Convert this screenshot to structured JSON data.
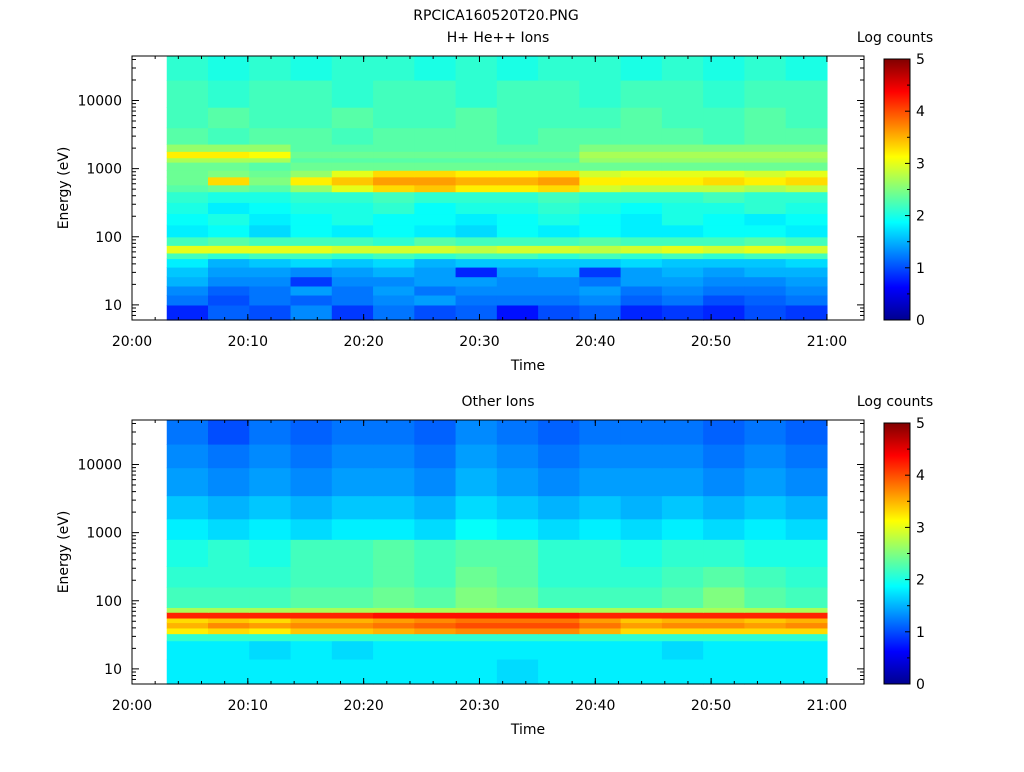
{
  "figure": {
    "title": "RPCICA160520T20.PNG"
  },
  "chart_data": [
    {
      "type": "heatmap",
      "title": "H+ He++ Ions",
      "xlabel": "Time",
      "ylabel": "Energy (eV)",
      "yscale": "log",
      "ylim": [
        6,
        45000
      ],
      "x_ticks": [
        "20:00",
        "20:10",
        "20:20",
        "20:30",
        "20:40",
        "20:50",
        "21:00"
      ],
      "y_ticks": [
        "10",
        "100",
        "1000",
        "10000"
      ],
      "x_start": "20:03",
      "x_end": "21:00",
      "x_bin_count": 16,
      "colorbar": {
        "label": "Log counts",
        "range": [
          0,
          5
        ],
        "ticks": [
          "0",
          "1",
          "2",
          "3",
          "4",
          "5"
        ]
      },
      "bands": [
        {
          "energy": [
            6,
            10
          ],
          "values": [
            0.8,
            1.1,
            1.0,
            1.3,
            0.9,
            1.2,
            1.0,
            1.1,
            0.7,
            1.0,
            1.1,
            0.8,
            0.9,
            0.8,
            1.0,
            0.9
          ]
        },
        {
          "energy": [
            10,
            14
          ],
          "values": [
            1.2,
            1.0,
            1.2,
            1.1,
            1.2,
            1.3,
            1.4,
            1.2,
            1.2,
            1.2,
            1.3,
            1.1,
            1.2,
            1.0,
            1.1,
            1.2
          ]
        },
        {
          "energy": [
            14,
            19
          ],
          "values": [
            1.3,
            1.1,
            1.2,
            1.4,
            1.2,
            1.4,
            1.2,
            1.3,
            1.3,
            1.3,
            1.4,
            1.2,
            1.3,
            1.2,
            1.2,
            1.3
          ]
        },
        {
          "energy": [
            19,
            26
          ],
          "values": [
            1.5,
            1.3,
            1.3,
            0.9,
            1.3,
            1.3,
            1.4,
            1.4,
            1.3,
            1.3,
            1.2,
            1.4,
            1.4,
            1.3,
            1.3,
            1.4
          ]
        },
        {
          "energy": [
            26,
            36
          ],
          "values": [
            1.6,
            1.4,
            1.4,
            1.3,
            1.4,
            1.5,
            1.4,
            0.8,
            1.4,
            1.5,
            0.9,
            1.4,
            1.5,
            1.4,
            1.5,
            1.5
          ]
        },
        {
          "energy": [
            36,
            48
          ],
          "values": [
            1.8,
            1.5,
            1.6,
            1.7,
            1.6,
            1.7,
            1.5,
            1.6,
            1.6,
            1.6,
            1.6,
            1.7,
            1.6,
            1.6,
            1.6,
            1.7
          ]
        },
        {
          "energy": [
            48,
            58
          ],
          "values": [
            2.2,
            2.1,
            2.2,
            2.2,
            2.1,
            2.2,
            2.1,
            2.2,
            2.2,
            2.1,
            2.2,
            2.1,
            2.2,
            2.1,
            2.2,
            2.2
          ]
        },
        {
          "energy": [
            58,
            75
          ],
          "values": [
            3.0,
            3.0,
            3.0,
            3.0,
            2.9,
            2.9,
            2.9,
            2.8,
            2.9,
            2.9,
            2.8,
            2.9,
            3.0,
            2.9,
            3.0,
            2.9
          ]
        },
        {
          "energy": [
            75,
            100
          ],
          "values": [
            2.2,
            2.3,
            2.2,
            2.2,
            2.2,
            2.1,
            2.3,
            2.2,
            2.2,
            2.2,
            2.3,
            2.2,
            2.2,
            2.2,
            2.3,
            2.2
          ]
        },
        {
          "energy": [
            100,
            150
          ],
          "values": [
            1.8,
            1.9,
            1.7,
            1.9,
            1.8,
            1.9,
            1.8,
            1.7,
            1.9,
            1.8,
            1.9,
            1.8,
            1.8,
            1.9,
            1.9,
            1.8
          ]
        },
        {
          "energy": [
            150,
            220
          ],
          "values": [
            1.9,
            2.0,
            1.8,
            1.9,
            2.0,
            1.9,
            1.9,
            1.8,
            1.9,
            2.0,
            1.9,
            1.8,
            2.0,
            1.9,
            1.8,
            1.9
          ]
        },
        {
          "energy": [
            220,
            320
          ],
          "values": [
            2.0,
            1.8,
            1.9,
            2.0,
            2.0,
            2.1,
            1.9,
            2.0,
            2.0,
            2.1,
            2.0,
            1.9,
            2.0,
            2.0,
            2.1,
            2.0
          ]
        },
        {
          "energy": [
            320,
            460
          ],
          "values": [
            2.1,
            2.0,
            2.0,
            2.1,
            2.1,
            2.2,
            2.1,
            2.1,
            2.1,
            2.2,
            2.1,
            2.1,
            2.1,
            2.2,
            2.1,
            2.1
          ]
        },
        {
          "energy": [
            460,
            580
          ],
          "values": [
            2.3,
            2.4,
            2.3,
            2.6,
            3.0,
            3.3,
            3.4,
            3.2,
            3.2,
            3.3,
            2.9,
            2.8,
            2.8,
            2.8,
            2.7,
            2.8
          ]
        },
        {
          "energy": [
            580,
            760
          ],
          "values": [
            2.4,
            3.3,
            2.5,
            3.2,
            3.4,
            3.6,
            3.6,
            3.5,
            3.5,
            3.6,
            3.2,
            3.2,
            3.2,
            3.3,
            3.2,
            3.3
          ]
        },
        {
          "energy": [
            760,
            950
          ],
          "values": [
            2.4,
            2.5,
            2.4,
            2.6,
            3.0,
            3.3,
            3.3,
            3.2,
            3.2,
            3.3,
            2.9,
            3.0,
            3.0,
            3.0,
            2.9,
            3.0
          ]
        },
        {
          "energy": [
            950,
            1250
          ],
          "values": [
            2.4,
            2.4,
            2.3,
            2.4,
            2.4,
            2.4,
            2.4,
            2.4,
            2.4,
            2.4,
            2.4,
            2.4,
            2.4,
            2.4,
            2.4,
            2.4
          ]
        },
        {
          "energy": [
            1250,
            1450
          ],
          "values": [
            2.7,
            2.7,
            2.7,
            2.3,
            2.3,
            2.3,
            2.3,
            2.3,
            2.3,
            2.3,
            2.6,
            2.6,
            2.6,
            2.6,
            2.6,
            2.6
          ]
        },
        {
          "energy": [
            1450,
            1800
          ],
          "values": [
            3.2,
            3.2,
            3.1,
            2.4,
            2.4,
            2.4,
            2.4,
            2.4,
            2.4,
            2.4,
            2.7,
            2.7,
            2.7,
            2.7,
            2.7,
            2.7
          ]
        },
        {
          "energy": [
            1800,
            2300
          ],
          "values": [
            2.6,
            2.6,
            2.6,
            2.3,
            2.3,
            2.3,
            2.3,
            2.3,
            2.3,
            2.3,
            2.5,
            2.5,
            2.5,
            2.5,
            2.5,
            2.5
          ]
        },
        {
          "energy": [
            2300,
            4000
          ],
          "values": [
            2.3,
            2.2,
            2.3,
            2.3,
            2.2,
            2.3,
            2.3,
            2.3,
            2.2,
            2.3,
            2.3,
            2.3,
            2.3,
            2.2,
            2.3,
            2.3
          ]
        },
        {
          "energy": [
            4000,
            8000
          ],
          "values": [
            2.2,
            2.3,
            2.2,
            2.2,
            2.3,
            2.2,
            2.2,
            2.3,
            2.2,
            2.2,
            2.2,
            2.3,
            2.2,
            2.2,
            2.3,
            2.2
          ]
        },
        {
          "energy": [
            8000,
            20000
          ],
          "values": [
            2.2,
            2.1,
            2.2,
            2.2,
            2.1,
            2.2,
            2.2,
            2.1,
            2.2,
            2.2,
            2.1,
            2.2,
            2.2,
            2.1,
            2.2,
            2.2
          ]
        },
        {
          "energy": [
            20000,
            45000
          ],
          "values": [
            2.1,
            2.0,
            2.1,
            2.0,
            2.1,
            2.1,
            2.0,
            2.1,
            2.0,
            2.1,
            2.1,
            2.0,
            2.1,
            2.0,
            2.1,
            2.0
          ]
        }
      ]
    },
    {
      "type": "heatmap",
      "title": "Other Ions",
      "xlabel": "Time",
      "ylabel": "Energy (eV)",
      "yscale": "log",
      "ylim": [
        6,
        45000
      ],
      "x_ticks": [
        "20:00",
        "20:10",
        "20:20",
        "20:30",
        "20:40",
        "20:50",
        "21:00"
      ],
      "y_ticks": [
        "10",
        "100",
        "1000",
        "10000"
      ],
      "x_start": "20:03",
      "x_end": "21:00",
      "x_bin_count": 16,
      "colorbar": {
        "label": "Log counts",
        "range": [
          0,
          5
        ],
        "ticks": [
          "0",
          "1",
          "2",
          "3",
          "4",
          "5"
        ]
      },
      "bands": [
        {
          "energy": [
            6,
            14
          ],
          "values": [
            1.8,
            1.8,
            1.8,
            1.8,
            1.8,
            1.8,
            1.8,
            1.8,
            1.7,
            1.8,
            1.8,
            1.8,
            1.8,
            1.8,
            1.8,
            1.8
          ]
        },
        {
          "energy": [
            14,
            26
          ],
          "values": [
            1.8,
            1.8,
            1.7,
            1.8,
            1.7,
            1.8,
            1.8,
            1.8,
            1.8,
            1.8,
            1.8,
            1.8,
            1.7,
            1.8,
            1.8,
            1.8
          ]
        },
        {
          "energy": [
            26,
            33
          ],
          "values": [
            2.1,
            2.1,
            2.1,
            2.1,
            2.1,
            2.1,
            2.1,
            2.1,
            2.1,
            2.1,
            2.1,
            2.1,
            2.1,
            2.1,
            2.1,
            2.1
          ]
        },
        {
          "energy": [
            33,
            40
          ],
          "values": [
            3.2,
            3.3,
            3.2,
            3.4,
            3.4,
            3.5,
            3.6,
            3.7,
            3.7,
            3.7,
            3.5,
            3.3,
            3.3,
            3.3,
            3.3,
            3.3
          ]
        },
        {
          "energy": [
            40,
            48
          ],
          "values": [
            3.5,
            3.7,
            3.6,
            3.7,
            3.7,
            3.8,
            3.9,
            4.0,
            4.0,
            4.0,
            3.8,
            3.6,
            3.7,
            3.7,
            3.6,
            3.7
          ]
        },
        {
          "energy": [
            48,
            56
          ],
          "values": [
            3.3,
            3.4,
            3.3,
            3.5,
            3.5,
            3.6,
            3.7,
            3.8,
            3.8,
            3.8,
            3.6,
            3.4,
            3.5,
            3.5,
            3.4,
            3.5
          ]
        },
        {
          "energy": [
            56,
            68
          ],
          "values": [
            4.2,
            4.2,
            4.2,
            4.2,
            4.2,
            4.3,
            4.3,
            4.3,
            4.3,
            4.3,
            4.2,
            4.2,
            4.2,
            4.2,
            4.2,
            4.2
          ]
        },
        {
          "energy": [
            68,
            80
          ],
          "values": [
            2.7,
            2.7,
            2.7,
            2.7,
            2.7,
            2.7,
            2.7,
            2.7,
            2.7,
            2.7,
            2.7,
            2.7,
            2.7,
            2.7,
            2.7,
            2.7
          ]
        },
        {
          "energy": [
            80,
            160
          ],
          "values": [
            2.2,
            2.2,
            2.2,
            2.3,
            2.3,
            2.4,
            2.3,
            2.5,
            2.4,
            2.2,
            2.2,
            2.2,
            2.3,
            2.5,
            2.3,
            2.2
          ]
        },
        {
          "energy": [
            160,
            320
          ],
          "values": [
            2.1,
            2.1,
            2.1,
            2.2,
            2.2,
            2.3,
            2.2,
            2.4,
            2.3,
            2.1,
            2.1,
            2.1,
            2.2,
            2.3,
            2.2,
            2.1
          ]
        },
        {
          "energy": [
            320,
            800
          ],
          "values": [
            2.0,
            2.1,
            2.0,
            2.2,
            2.2,
            2.3,
            2.2,
            2.3,
            2.3,
            2.1,
            2.1,
            2.0,
            2.1,
            2.1,
            2.0,
            2.0
          ]
        },
        {
          "energy": [
            800,
            1600
          ],
          "values": [
            1.8,
            1.7,
            1.8,
            1.7,
            1.8,
            1.8,
            1.7,
            1.9,
            1.8,
            1.7,
            1.8,
            1.7,
            1.8,
            1.7,
            1.8,
            1.7
          ]
        },
        {
          "energy": [
            1600,
            3500
          ],
          "values": [
            1.6,
            1.5,
            1.6,
            1.5,
            1.6,
            1.6,
            1.5,
            1.7,
            1.6,
            1.5,
            1.6,
            1.5,
            1.6,
            1.5,
            1.6,
            1.5
          ]
        },
        {
          "energy": [
            3500,
            9000
          ],
          "values": [
            1.4,
            1.3,
            1.4,
            1.3,
            1.4,
            1.4,
            1.3,
            1.5,
            1.4,
            1.3,
            1.4,
            1.4,
            1.4,
            1.3,
            1.4,
            1.3
          ]
        },
        {
          "energy": [
            9000,
            20000
          ],
          "values": [
            1.3,
            1.2,
            1.3,
            1.2,
            1.3,
            1.3,
            1.2,
            1.4,
            1.3,
            1.2,
            1.3,
            1.3,
            1.3,
            1.2,
            1.3,
            1.2
          ]
        },
        {
          "energy": [
            20000,
            45000
          ],
          "values": [
            1.2,
            1.0,
            1.2,
            1.1,
            1.2,
            1.2,
            1.1,
            1.3,
            1.2,
            1.1,
            1.2,
            1.2,
            1.2,
            1.1,
            1.2,
            1.1
          ]
        }
      ]
    }
  ]
}
